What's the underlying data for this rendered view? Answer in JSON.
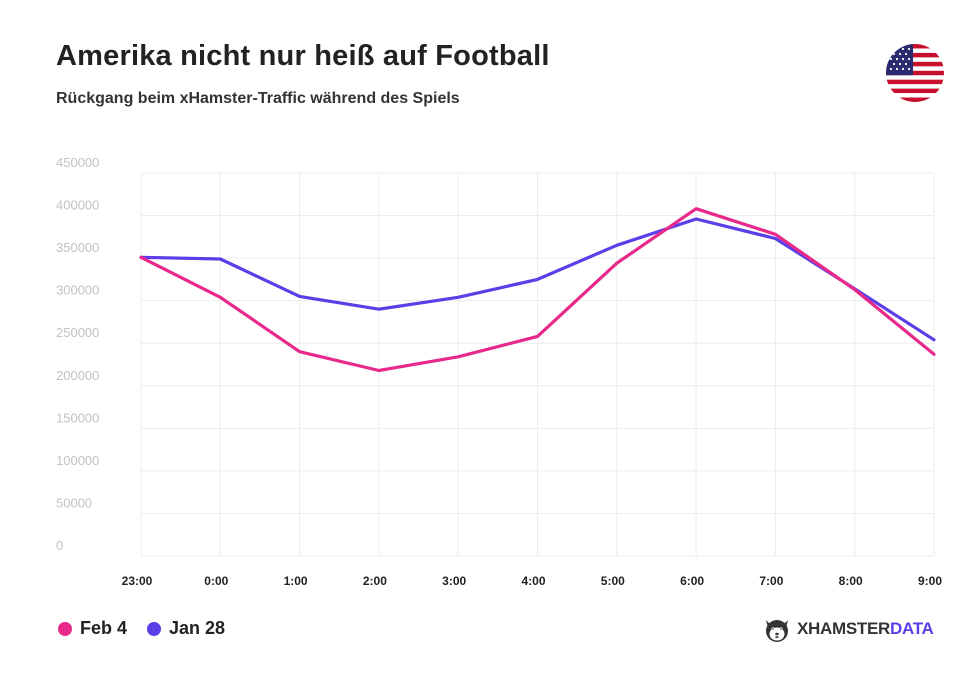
{
  "header": {
    "title": "Amerika nicht nur heiß auf Football",
    "subtitle": "Rückgang beim xHamster-Traffic während des Spiels"
  },
  "flag_icon": "us-flag-icon",
  "brand": {
    "part1": "XHAMSTER",
    "part2": "DATA",
    "logo_icon": "xhamster-logo-icon"
  },
  "legend": [
    {
      "label": "Feb 4",
      "color": "#e8288a"
    },
    {
      "label": "Jan 28",
      "color": "#5a3ee8"
    }
  ],
  "chart_data": {
    "type": "line",
    "title": "Amerika nicht nur heiß auf Football",
    "subtitle": "Rückgang beim xHamster-Traffic während des Spiels",
    "xlabel": "",
    "ylabel": "",
    "categories": [
      "23:00",
      "0:00",
      "1:00",
      "2:00",
      "3:00",
      "4:00",
      "5:00",
      "6:00",
      "7:00",
      "8:00",
      "9:00"
    ],
    "yticks": [
      "0",
      "50000",
      "100000",
      "150000",
      "200000",
      "250000",
      "300000",
      "350000",
      "400000",
      "450000"
    ],
    "ylim": [
      0,
      450000
    ],
    "grid": true,
    "legend_position": "bottom-left",
    "series": [
      {
        "name": "Feb 4",
        "color": "#e8288a",
        "values": [
          351000,
          304000,
          240000,
          218000,
          234000,
          258000,
          344000,
          408000,
          378000,
          313000,
          237000
        ]
      },
      {
        "name": "Jan 28",
        "color": "#5a3ee8",
        "values": [
          351000,
          349000,
          305000,
          290000,
          304000,
          325000,
          365000,
          396000,
          373000,
          314000,
          254000
        ]
      }
    ]
  }
}
